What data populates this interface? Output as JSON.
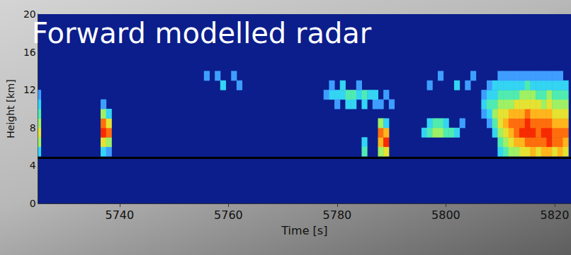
{
  "chart_data": {
    "type": "heatmap",
    "title": "Forward modelled radar",
    "x_label": "Time [s]",
    "y_label": "Height [km]",
    "xlim": [
      5725,
      5823
    ],
    "ylim": [
      0,
      20
    ],
    "xticks": [
      5740,
      5760,
      5780,
      5800,
      5820
    ],
    "yticks": [
      0,
      4,
      8,
      12,
      16,
      20
    ],
    "grid": false,
    "hline_y": 4.8,
    "cell_width": 1,
    "cell_height": 1,
    "color_range": [
      1,
      10
    ],
    "cells": [
      [
        5725,
        5.5,
        3
      ],
      [
        5725,
        6.5,
        5
      ],
      [
        5725,
        7.5,
        6
      ],
      [
        5725,
        8.5,
        5
      ],
      [
        5725,
        9.5,
        4
      ],
      [
        5725,
        10.5,
        3
      ],
      [
        5725,
        11.5,
        2
      ],
      [
        5737,
        5.5,
        3
      ],
      [
        5737,
        6.5,
        6
      ],
      [
        5737,
        7.5,
        9
      ],
      [
        5737,
        8.5,
        8
      ],
      [
        5737,
        9.5,
        5
      ],
      [
        5737,
        10.5,
        2
      ],
      [
        5738,
        5.5,
        2
      ],
      [
        5738,
        6.5,
        5
      ],
      [
        5738,
        7.5,
        8
      ],
      [
        5738,
        8.5,
        6
      ],
      [
        5738,
        9.5,
        3
      ],
      [
        5756,
        13.5,
        2
      ],
      [
        5758,
        13.5,
        2
      ],
      [
        5759,
        12.5,
        3
      ],
      [
        5761,
        13.5,
        2
      ],
      [
        5762,
        12.5,
        2
      ],
      [
        5778,
        11.5,
        2
      ],
      [
        5779,
        11.5,
        3
      ],
      [
        5779,
        12.5,
        2
      ],
      [
        5780,
        11.5,
        3
      ],
      [
        5780,
        10.5,
        2
      ],
      [
        5781,
        11.5,
        3
      ],
      [
        5781,
        12.5,
        3
      ],
      [
        5782,
        10.5,
        3
      ],
      [
        5782,
        11.5,
        4
      ],
      [
        5783,
        11.5,
        4
      ],
      [
        5783,
        10.5,
        3
      ],
      [
        5784,
        11.5,
        3
      ],
      [
        5784,
        12.5,
        2
      ],
      [
        5785,
        11.5,
        4
      ],
      [
        5785,
        10.5,
        3
      ],
      [
        5786,
        11.5,
        3
      ],
      [
        5787,
        10.5,
        2
      ],
      [
        5787,
        11.5,
        3
      ],
      [
        5788,
        10.5,
        2
      ],
      [
        5789,
        11.5,
        2
      ],
      [
        5790,
        10.5,
        2
      ],
      [
        5785,
        5.5,
        4
      ],
      [
        5785,
        6.5,
        3
      ],
      [
        5788,
        5.5,
        5
      ],
      [
        5788,
        6.5,
        7
      ],
      [
        5788,
        7.5,
        8
      ],
      [
        5788,
        8.5,
        5
      ],
      [
        5789,
        5.5,
        6
      ],
      [
        5789,
        6.5,
        9
      ],
      [
        5789,
        7.5,
        7
      ],
      [
        5789,
        8.5,
        3
      ],
      [
        5796,
        7.5,
        3
      ],
      [
        5797,
        7.5,
        4
      ],
      [
        5797,
        8.5,
        3
      ],
      [
        5798,
        7.5,
        5
      ],
      [
        5798,
        8.5,
        4
      ],
      [
        5799,
        7.5,
        5
      ],
      [
        5799,
        8.5,
        4
      ],
      [
        5800,
        7.5,
        4
      ],
      [
        5800,
        8.5,
        3
      ],
      [
        5801,
        7.5,
        4
      ],
      [
        5802,
        7.5,
        3
      ],
      [
        5803,
        8.5,
        2
      ],
      [
        5797,
        12.5,
        2
      ],
      [
        5799,
        13.5,
        2
      ],
      [
        5802,
        12.5,
        3
      ],
      [
        5804,
        12.5,
        2
      ],
      [
        5805,
        13.5,
        2
      ],
      [
        5807,
        9.5,
        2
      ],
      [
        5807,
        10.5,
        3
      ],
      [
        5807,
        11.5,
        2
      ],
      [
        5808,
        8.5,
        2
      ],
      [
        5808,
        9.5,
        3
      ],
      [
        5808,
        10.5,
        4
      ],
      [
        5808,
        11.5,
        3
      ],
      [
        5808,
        12.5,
        2
      ],
      [
        5809,
        7.5,
        3
      ],
      [
        5809,
        8.5,
        4
      ],
      [
        5809,
        9.5,
        5
      ],
      [
        5809,
        10.5,
        4
      ],
      [
        5809,
        11.5,
        3
      ],
      [
        5809,
        12.5,
        3
      ],
      [
        5810,
        5.5,
        3
      ],
      [
        5810,
        6.5,
        4
      ],
      [
        5810,
        7.5,
        5
      ],
      [
        5810,
        8.5,
        6
      ],
      [
        5810,
        9.5,
        6
      ],
      [
        5810,
        10.5,
        5
      ],
      [
        5810,
        11.5,
        4
      ],
      [
        5810,
        12.5,
        3
      ],
      [
        5810,
        13.5,
        2
      ],
      [
        5811,
        5.5,
        4
      ],
      [
        5811,
        6.5,
        5
      ],
      [
        5811,
        7.5,
        6
      ],
      [
        5811,
        8.5,
        7
      ],
      [
        5811,
        9.5,
        6
      ],
      [
        5811,
        10.5,
        5
      ],
      [
        5811,
        11.5,
        4
      ],
      [
        5811,
        12.5,
        3
      ],
      [
        5811,
        13.5,
        2
      ],
      [
        5812,
        5.5,
        5
      ],
      [
        5812,
        6.5,
        6
      ],
      [
        5812,
        7.5,
        7
      ],
      [
        5812,
        8.5,
        8
      ],
      [
        5812,
        9.5,
        7
      ],
      [
        5812,
        10.5,
        5
      ],
      [
        5812,
        11.5,
        4
      ],
      [
        5812,
        12.5,
        3
      ],
      [
        5812,
        13.5,
        2
      ],
      [
        5813,
        5.5,
        5
      ],
      [
        5813,
        6.5,
        7
      ],
      [
        5813,
        7.5,
        8
      ],
      [
        5813,
        8.5,
        8
      ],
      [
        5813,
        9.5,
        7
      ],
      [
        5813,
        10.5,
        6
      ],
      [
        5813,
        11.5,
        4
      ],
      [
        5813,
        12.5,
        3
      ],
      [
        5813,
        13.5,
        2
      ],
      [
        5814,
        5.5,
        6
      ],
      [
        5814,
        6.5,
        7
      ],
      [
        5814,
        7.5,
        9
      ],
      [
        5814,
        8.5,
        8
      ],
      [
        5814,
        9.5,
        7
      ],
      [
        5814,
        10.5,
        6
      ],
      [
        5814,
        11.5,
        5
      ],
      [
        5814,
        12.5,
        3
      ],
      [
        5814,
        13.5,
        2
      ],
      [
        5815,
        5.5,
        6
      ],
      [
        5815,
        6.5,
        8
      ],
      [
        5815,
        7.5,
        9
      ],
      [
        5815,
        8.5,
        9
      ],
      [
        5815,
        9.5,
        8
      ],
      [
        5815,
        10.5,
        6
      ],
      [
        5815,
        11.5,
        5
      ],
      [
        5815,
        12.5,
        4
      ],
      [
        5815,
        13.5,
        2
      ],
      [
        5816,
        5.5,
        7
      ],
      [
        5816,
        6.5,
        8
      ],
      [
        5816,
        7.5,
        9
      ],
      [
        5816,
        8.5,
        8
      ],
      [
        5816,
        9.5,
        7
      ],
      [
        5816,
        10.5,
        6
      ],
      [
        5816,
        11.5,
        5
      ],
      [
        5816,
        12.5,
        3
      ],
      [
        5816,
        13.5,
        2
      ],
      [
        5817,
        5.5,
        6
      ],
      [
        5817,
        6.5,
        8
      ],
      [
        5817,
        7.5,
        8
      ],
      [
        5817,
        8.5,
        8
      ],
      [
        5817,
        9.5,
        7
      ],
      [
        5817,
        10.5,
        6
      ],
      [
        5817,
        11.5,
        4
      ],
      [
        5817,
        12.5,
        3
      ],
      [
        5817,
        13.5,
        2
      ],
      [
        5818,
        5.5,
        7
      ],
      [
        5818,
        6.5,
        8
      ],
      [
        5818,
        7.5,
        9
      ],
      [
        5818,
        8.5,
        8
      ],
      [
        5818,
        9.5,
        7
      ],
      [
        5818,
        10.5,
        5
      ],
      [
        5818,
        11.5,
        4
      ],
      [
        5818,
        12.5,
        3
      ],
      [
        5818,
        13.5,
        2
      ],
      [
        5819,
        5.5,
        7
      ],
      [
        5819,
        6.5,
        9
      ],
      [
        5819,
        7.5,
        9
      ],
      [
        5819,
        8.5,
        8
      ],
      [
        5819,
        9.5,
        7
      ],
      [
        5819,
        10.5,
        6
      ],
      [
        5819,
        11.5,
        5
      ],
      [
        5819,
        12.5,
        3
      ],
      [
        5819,
        13.5,
        2
      ],
      [
        5820,
        5.5,
        6
      ],
      [
        5820,
        6.5,
        8
      ],
      [
        5820,
        7.5,
        8
      ],
      [
        5820,
        8.5,
        7
      ],
      [
        5820,
        9.5,
        6
      ],
      [
        5820,
        10.5,
        5
      ],
      [
        5820,
        11.5,
        4
      ],
      [
        5820,
        12.5,
        3
      ],
      [
        5820,
        13.5,
        2
      ],
      [
        5821,
        5.5,
        7
      ],
      [
        5821,
        6.5,
        8
      ],
      [
        5821,
        7.5,
        8
      ],
      [
        5821,
        8.5,
        7
      ],
      [
        5821,
        9.5,
        6
      ],
      [
        5821,
        10.5,
        5
      ],
      [
        5821,
        11.5,
        4
      ],
      [
        5821,
        12.5,
        3
      ],
      [
        5821,
        13.5,
        2
      ],
      [
        5822,
        5.5,
        6
      ],
      [
        5822,
        6.5,
        7
      ],
      [
        5822,
        7.5,
        8
      ],
      [
        5822,
        8.5,
        7
      ],
      [
        5822,
        9.5,
        6
      ],
      [
        5822,
        10.5,
        5
      ],
      [
        5822,
        11.5,
        4
      ],
      [
        5822,
        12.5,
        3
      ]
    ]
  }
}
